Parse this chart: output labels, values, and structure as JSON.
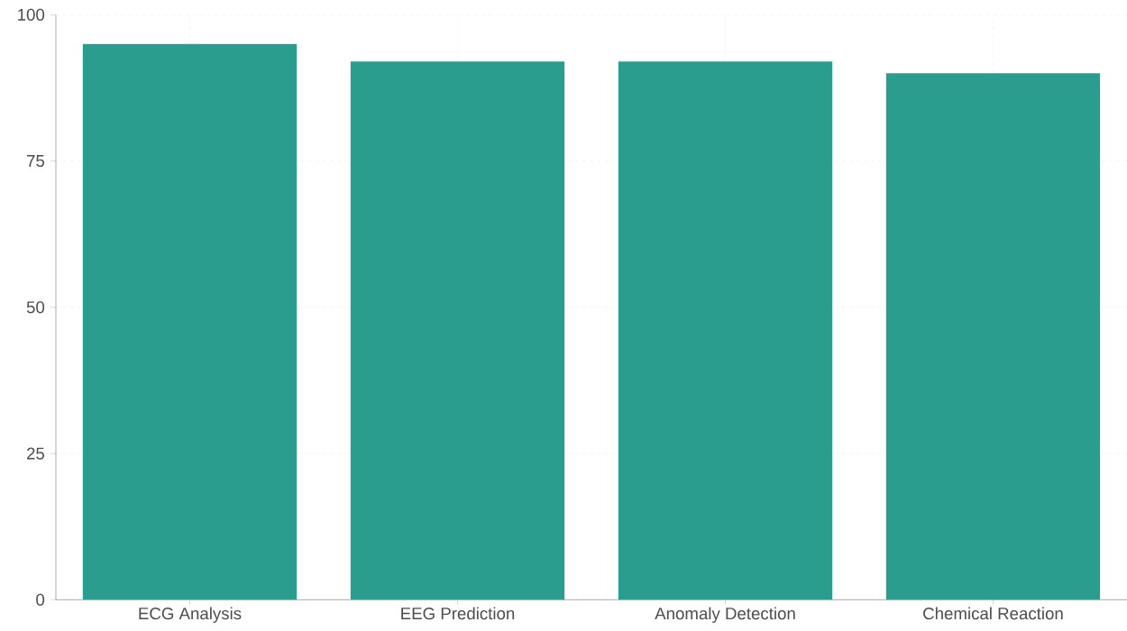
{
  "chart_data": {
    "type": "bar",
    "categories": [
      "ECG Analysis",
      "EEG Prediction",
      "Anomaly Detection",
      "Chemical Reaction"
    ],
    "values": [
      95,
      92,
      92,
      90
    ],
    "color": "#2a9d8f",
    "ylim": [
      0,
      100
    ],
    "yticks": [
      0,
      25,
      50,
      75,
      100
    ],
    "grid": true
  }
}
